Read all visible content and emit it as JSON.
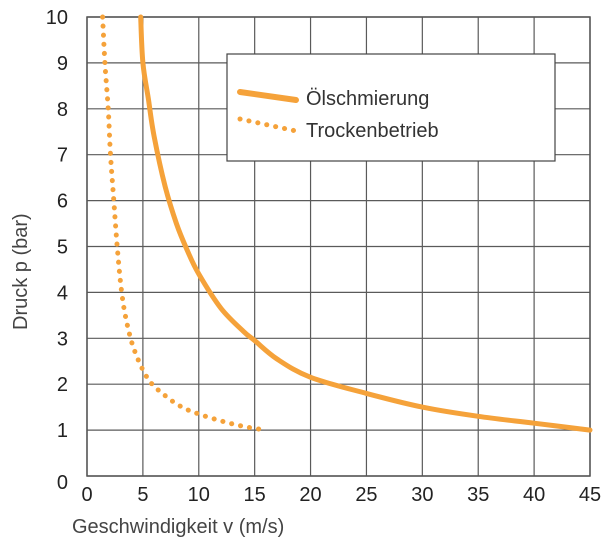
{
  "chart_data": {
    "type": "line",
    "title": "",
    "xlabel": "Geschwindigkeit v (m/s)",
    "ylabel": "Druck p (bar)",
    "xlim": [
      0,
      45
    ],
    "ylim": [
      0,
      10
    ],
    "x_ticks": [
      "0",
      "5",
      "10",
      "15",
      "20",
      "25",
      "30",
      "35",
      "40",
      "45"
    ],
    "y_ticks": [
      "0",
      "1",
      "2",
      "3",
      "4",
      "5",
      "6",
      "7",
      "8",
      "9",
      "10"
    ],
    "grid": true,
    "legend_position": "top-right",
    "series": [
      {
        "name": "Ölschmierung",
        "style": "solid",
        "color": "#F5A23A",
        "points": [
          [
            4.8,
            10
          ],
          [
            5,
            9.0
          ],
          [
            5.5,
            8.2
          ],
          [
            6,
            7.4
          ],
          [
            7,
            6.3
          ],
          [
            8,
            5.5
          ],
          [
            9,
            4.9
          ],
          [
            10,
            4.4
          ],
          [
            12,
            3.65
          ],
          [
            14,
            3.15
          ],
          [
            15,
            2.95
          ],
          [
            17,
            2.55
          ],
          [
            20,
            2.15
          ],
          [
            25,
            1.8
          ],
          [
            30,
            1.5
          ],
          [
            35,
            1.3
          ],
          [
            40,
            1.15
          ],
          [
            45,
            1.0
          ]
        ]
      },
      {
        "name": "Trockenbetrieb",
        "style": "dotted",
        "color": "#F5A23A",
        "points": [
          [
            1.4,
            10
          ],
          [
            1.6,
            9.0
          ],
          [
            1.9,
            8.0
          ],
          [
            2.1,
            7.0
          ],
          [
            2.4,
            6.0
          ],
          [
            2.7,
            5.0
          ],
          [
            3.1,
            4.0
          ],
          [
            3.6,
            3.3
          ],
          [
            4.3,
            2.7
          ],
          [
            5.5,
            2.1
          ],
          [
            7,
            1.75
          ],
          [
            8.5,
            1.5
          ],
          [
            10,
            1.35
          ],
          [
            12,
            1.2
          ],
          [
            14,
            1.08
          ],
          [
            16,
            1.0
          ]
        ]
      }
    ]
  }
}
